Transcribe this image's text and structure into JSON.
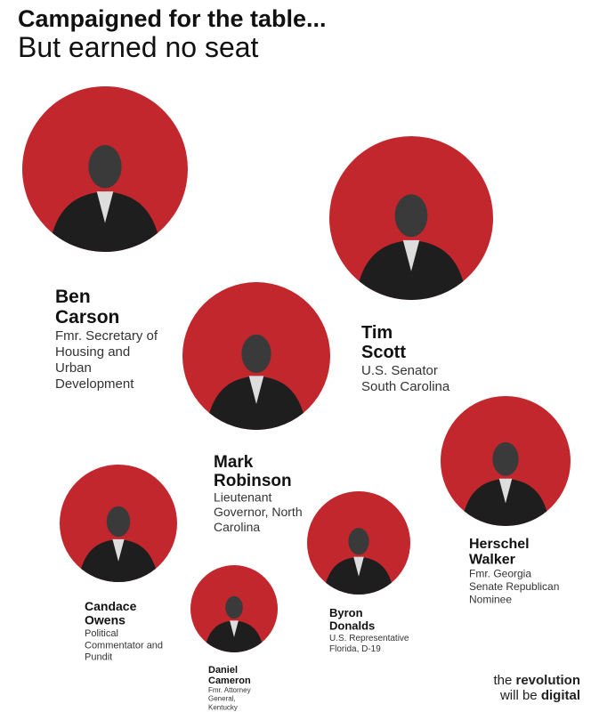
{
  "header": {
    "title": "Campaigned for the table...",
    "subtitle": "But earned no seat"
  },
  "people": [
    {
      "name": [
        "Ben",
        "Carson"
      ],
      "role": [
        "Fmr. Secretary of",
        "Housing and",
        "Urban",
        "Development"
      ]
    },
    {
      "name": [
        "Tim",
        "Scott"
      ],
      "role": [
        "U.S. Senator",
        "South Carolina"
      ]
    },
    {
      "name": [
        "Mark",
        "Robinson"
      ],
      "role": [
        "Lieutenant",
        "Governor, North",
        "Carolina"
      ]
    },
    {
      "name": [
        "Herschel",
        "Walker"
      ],
      "role": [
        "Fmr. Georgia",
        "Senate Republican",
        "Nominee"
      ]
    },
    {
      "name": [
        "Candace",
        "Owens"
      ],
      "role": [
        "Political",
        "Commentator and",
        "Pundit"
      ]
    },
    {
      "name": [
        "Byron",
        "Donalds"
      ],
      "role": [
        "U.S. Representative",
        "Florida, D-19"
      ]
    },
    {
      "name": [
        "Daniel",
        "Cameron"
      ],
      "role": [
        "Fmr. Attorney",
        "General,",
        "Kentucky"
      ]
    }
  ],
  "footer": {
    "line1": [
      "the",
      "revolution"
    ],
    "line2": [
      "will be",
      "digital"
    ]
  }
}
